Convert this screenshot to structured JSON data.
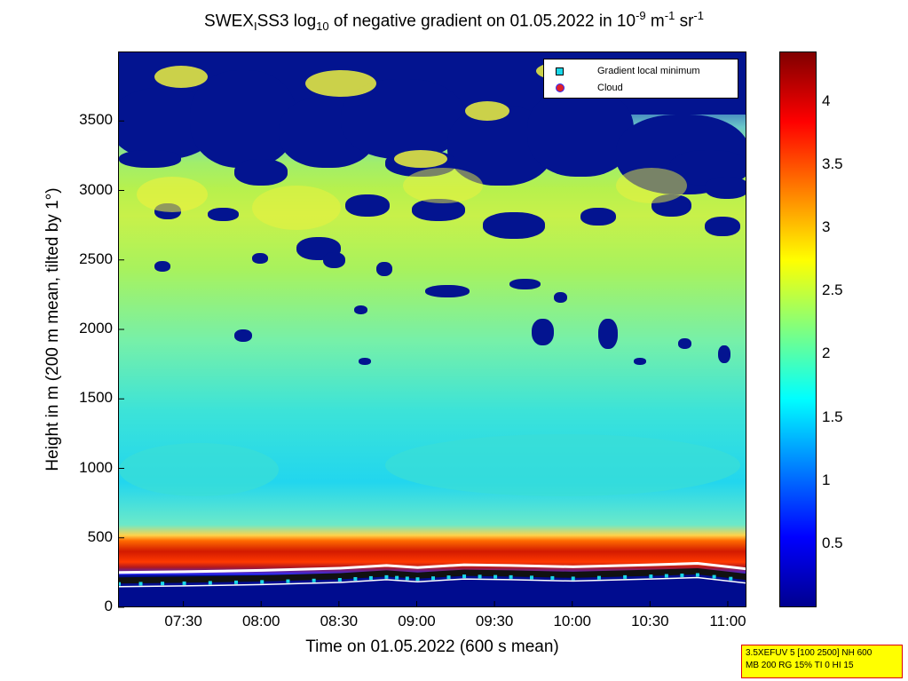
{
  "chart_data": {
    "type": "heatmap",
    "title": {
      "part1": "SWEX",
      "sub1": "I",
      "part2": "SS3 log",
      "sub2": "10",
      "part3": " of negative gradient on 01.05.2022 in 10",
      "sup1": "-9",
      "part4": " m",
      "sup2": "-1",
      "part5": " sr",
      "sup3": "-1"
    },
    "xlabel": "Time on 01.05.2022 (600 s mean)",
    "ylabel": "Height in m (200 m mean, tilted by 1°)",
    "x_ticks": [
      "07:30",
      "08:00",
      "08:30",
      "09:00",
      "09:30",
      "10:00",
      "10:30",
      "11:00"
    ],
    "x_tick_hours": [
      7.5,
      8.0,
      8.5,
      9.0,
      9.5,
      10.0,
      10.5,
      11.0
    ],
    "xlim_hours": [
      7.08,
      11.12
    ],
    "y_ticks": [
      0,
      500,
      1000,
      1500,
      2000,
      2500,
      3000,
      3500
    ],
    "ylim": [
      0,
      4000
    ],
    "colorbar": {
      "ticks": [
        0.5,
        1,
        1.5,
        2,
        2.5,
        3,
        3.5,
        4
      ],
      "range": [
        0,
        4.4
      ],
      "colors": [
        "#00008f",
        "#0000ff",
        "#00ffff",
        "#ffff00",
        "#ff0000",
        "#800000"
      ]
    },
    "legend": [
      {
        "label": "Gradient local minimum",
        "marker": "square",
        "color": "#19d7e8"
      },
      {
        "label": "Cloud",
        "marker": "circle",
        "color": "#e0202a"
      }
    ],
    "legend_position": "top-right",
    "boundary_layer_height_m": [
      [
        7.08,
        200
      ],
      [
        7.5,
        205
      ],
      [
        8.0,
        215
      ],
      [
        8.5,
        230
      ],
      [
        8.8,
        250
      ],
      [
        9.0,
        235
      ],
      [
        9.3,
        255
      ],
      [
        9.6,
        250
      ],
      [
        10.0,
        240
      ],
      [
        10.5,
        255
      ],
      [
        10.8,
        265
      ],
      [
        11.12,
        225
      ]
    ]
  },
  "infobox": {
    "line1": "3.5XEFUV 5 [100 2500] NH 600",
    "line2": "MB 200 RG 15% TI 0 HI 15"
  }
}
